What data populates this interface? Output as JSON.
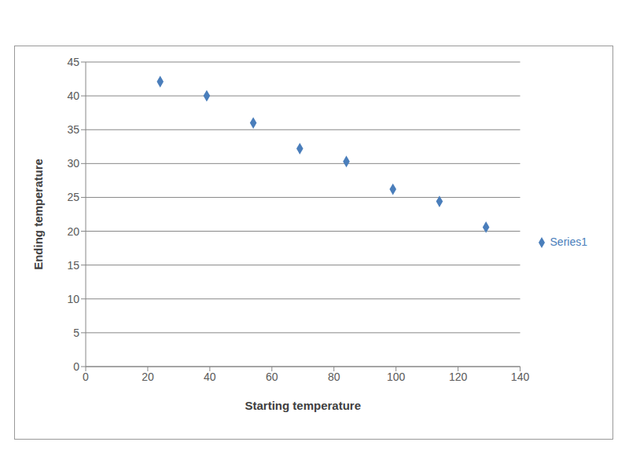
{
  "chart_data": {
    "type": "scatter",
    "x_label": "Starting temperature",
    "y_label": "Ending temperature",
    "series": [
      {
        "name": "Series1",
        "color": "#4a7ebb",
        "marker": "diamond",
        "x": [
          24,
          39,
          54,
          69,
          84,
          99,
          114,
          129
        ],
        "values": [
          42.1,
          40,
          36,
          32.2,
          30.3,
          26.2,
          24.4,
          20.6
        ]
      }
    ],
    "xlim": [
      0,
      140
    ],
    "xticks": [
      0,
      20,
      40,
      60,
      80,
      100,
      120,
      140
    ],
    "ylim": [
      0,
      45
    ],
    "yticks": [
      0,
      5,
      10,
      15,
      20,
      25,
      30,
      35,
      40,
      45
    ],
    "grid": "y",
    "legend": "right"
  }
}
